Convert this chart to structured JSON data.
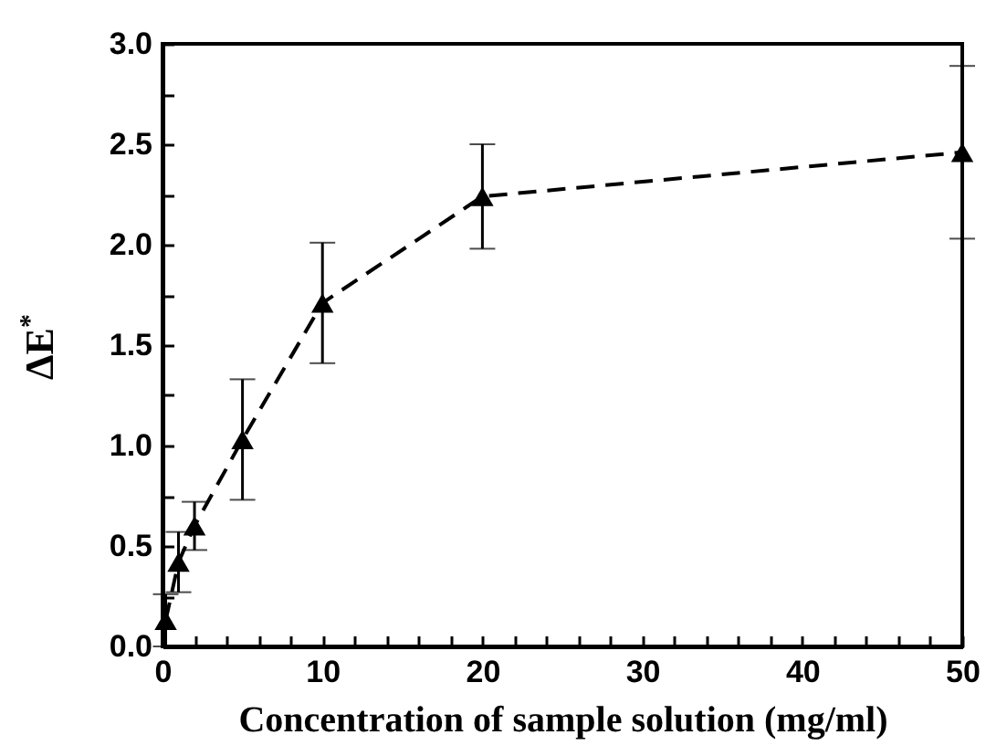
{
  "chart_data": {
    "type": "line",
    "xlabel": "Concentration of sample solution (mg/ml)",
    "ylabel": "ΔE$^{*}$",
    "x": [
      0.2,
      1,
      2,
      5,
      10,
      20,
      50
    ],
    "series": [
      {
        "color": "#000000",
        "values": [
          0.13,
          0.42,
          0.6,
          1.03,
          1.71,
          2.24,
          2.46
        ],
        "errors": [
          0.13,
          0.15,
          0.12,
          0.3,
          0.3,
          0.26,
          0.43
        ]
      }
    ],
    "xlim": [
      0,
      50
    ],
    "ylim": [
      0,
      3
    ],
    "xticks": [
      0,
      {
        "value": 2,
        "label": null
      },
      {
        "value": 4,
        "label": null
      },
      {
        "value": 6,
        "label": null
      },
      {
        "value": 8,
        "label": null
      },
      10,
      {
        "value": 12,
        "label": null
      },
      {
        "value": 14,
        "label": null
      },
      {
        "value": 16,
        "label": null
      },
      {
        "value": 18,
        "label": null
      },
      20,
      {
        "value": 22,
        "label": null
      },
      {
        "value": 24,
        "label": null
      },
      {
        "value": 26,
        "label": null
      },
      {
        "value": 28,
        "label": null
      },
      30,
      {
        "value": 32,
        "label": null
      },
      {
        "value": 34,
        "label": null
      },
      {
        "value": 36,
        "label": null
      },
      {
        "value": 38,
        "label": null
      },
      40,
      {
        "value": 42,
        "label": null
      },
      {
        "value": 44,
        "label": null
      },
      {
        "value": 46,
        "label": null
      },
      {
        "value": 48,
        "label": null
      },
      50
    ],
    "yticks": [
      {
        "value": 0,
        "label": "0.0"
      },
      {
        "value": 0.25,
        "label": null
      },
      {
        "value": 0.5,
        "label": "0.5"
      },
      {
        "value": 0.75,
        "label": null
      },
      {
        "value": 1,
        "label": "1.0"
      },
      {
        "value": 1.25,
        "label": null
      },
      {
        "value": 1.5,
        "label": "1.5"
      },
      {
        "value": 1.75,
        "label": null
      },
      {
        "value": 2,
        "label": "2.0"
      },
      {
        "value": 2.25,
        "label": null
      },
      {
        "value": 2.5,
        "label": "2.5"
      },
      {
        "value": 2.75,
        "label": null
      },
      {
        "value": 3,
        "label": "3.0"
      }
    ],
    "marker": "triangle",
    "line_style": "dashed",
    "grid": false,
    "legend": false
  }
}
